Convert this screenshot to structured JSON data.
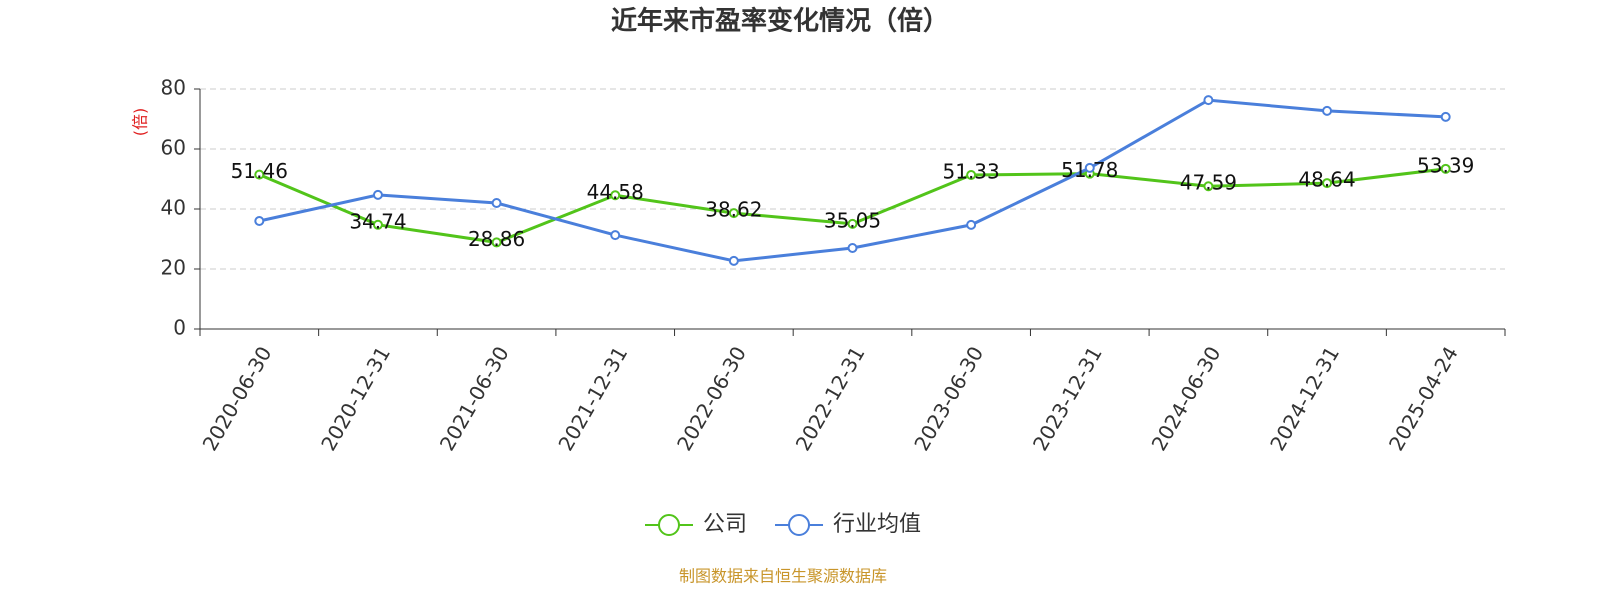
{
  "chart_data": {
    "type": "line",
    "title": "近年来市盈率变化情况（倍）",
    "y_label": "(倍)",
    "categories": [
      "2020-06-30",
      "2020-12-31",
      "2021-06-30",
      "2021-12-31",
      "2022-06-30",
      "2022-12-31",
      "2023-06-30",
      "2023-12-31",
      "2024-06-30",
      "2024-12-31",
      "2025-04-24"
    ],
    "series": [
      {
        "name": "公司",
        "color": "#52c41a",
        "values": [
          51.46,
          34.74,
          28.86,
          44.58,
          38.62,
          35.05,
          51.33,
          51.78,
          47.59,
          48.64,
          53.39
        ]
      },
      {
        "name": "行业均值",
        "color": "#4a7fdb",
        "values": [
          36,
          44.7,
          42,
          31.3,
          22.7,
          27,
          34.7,
          53.7,
          76.3,
          72.7,
          70.7
        ]
      }
    ],
    "ylim": [
      0,
      80
    ],
    "yticks": [
      0,
      20,
      40,
      60,
      80
    ],
    "grid": true,
    "legend": "bottom",
    "source": "制图数据来自恒生聚源数据库"
  }
}
